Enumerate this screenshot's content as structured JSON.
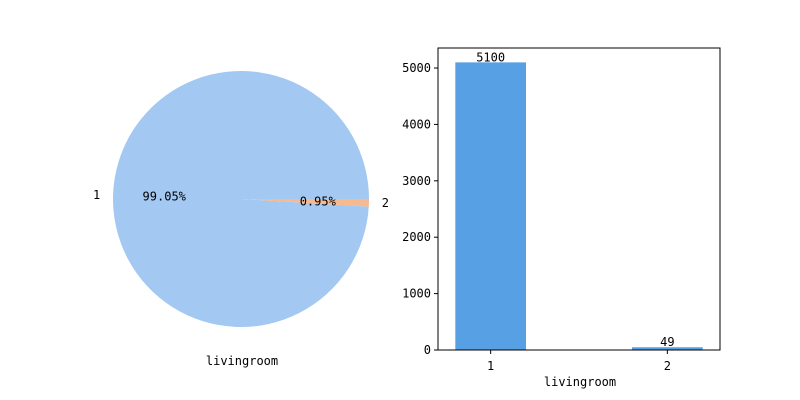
{
  "chart_data": [
    {
      "type": "pie",
      "xlabel": "livingroom",
      "categories": [
        "1",
        "2"
      ],
      "values": [
        5100,
        49
      ],
      "percent_labels": [
        "99.05%",
        "0.95%"
      ],
      "colors": [
        "#a3c8f2",
        "#f7b98e"
      ]
    },
    {
      "type": "bar",
      "xlabel": "livingroom",
      "categories": [
        "1",
        "2"
      ],
      "values": [
        5100,
        49
      ],
      "value_labels": [
        "5100",
        "49"
      ],
      "yticks": [
        "0",
        "1000",
        "2000",
        "3000",
        "4000",
        "5000"
      ],
      "ylim": [
        0,
        5355
      ],
      "bar_color": "#57a0e3"
    }
  ]
}
